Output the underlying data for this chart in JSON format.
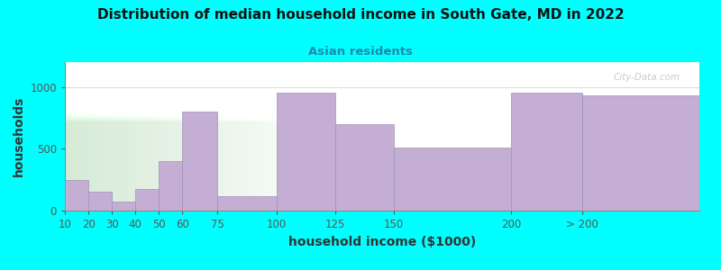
{
  "title": "Distribution of median household income in South Gate, MD in 2022",
  "subtitle": "Asian residents",
  "xlabel": "household income ($1000)",
  "ylabel": "households",
  "bg_color": "#00FFFF",
  "bar_color": "#C4AED4",
  "bar_edge_color": "#A090B8",
  "bin_edges": [
    10,
    20,
    30,
    40,
    50,
    60,
    75,
    100,
    125,
    150,
    200,
    230,
    280
  ],
  "values": [
    250,
    150,
    75,
    175,
    400,
    800,
    120,
    950,
    700,
    510,
    950,
    930
  ],
  "tick_positions": [
    10,
    20,
    30,
    40,
    50,
    60,
    75,
    100,
    125,
    150,
    200,
    230
  ],
  "tick_labels": [
    "10",
    "20",
    "30",
    "40",
    "50",
    "60",
    "75",
    "100",
    "125",
    "150",
    "200",
    "> 200"
  ],
  "ylim": [
    0,
    1200
  ],
  "yticks": [
    0,
    500,
    1000
  ],
  "watermark": "City-Data.com",
  "title_fontsize": 11,
  "subtitle_fontsize": 9.5,
  "label_fontsize": 10,
  "tick_fontsize": 8.5
}
